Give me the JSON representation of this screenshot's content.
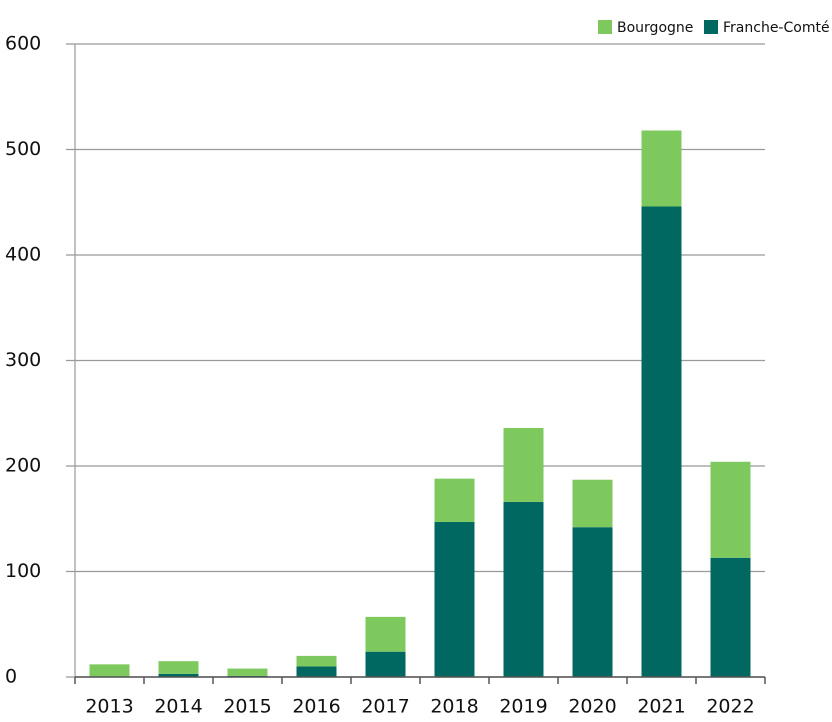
{
  "chart_data": {
    "type": "stacked-bar",
    "categories": [
      "2013",
      "2014",
      "2015",
      "2016",
      "2017",
      "2018",
      "2019",
      "2020",
      "2021",
      "2022"
    ],
    "series": [
      {
        "name": "Franche-Comté",
        "color": "#006860",
        "values": [
          0,
          3,
          1,
          10,
          24,
          147,
          166,
          142,
          446,
          113
        ]
      },
      {
        "name": "Bourgogne",
        "color": "#7dc95e",
        "values": [
          12,
          12,
          7,
          10,
          33,
          41,
          70,
          45,
          72,
          91
        ]
      }
    ],
    "ylim": [
      0,
      600
    ],
    "yticks": [
      0,
      100,
      200,
      300,
      400,
      500,
      600
    ],
    "grid": true,
    "legend": "top-right"
  }
}
